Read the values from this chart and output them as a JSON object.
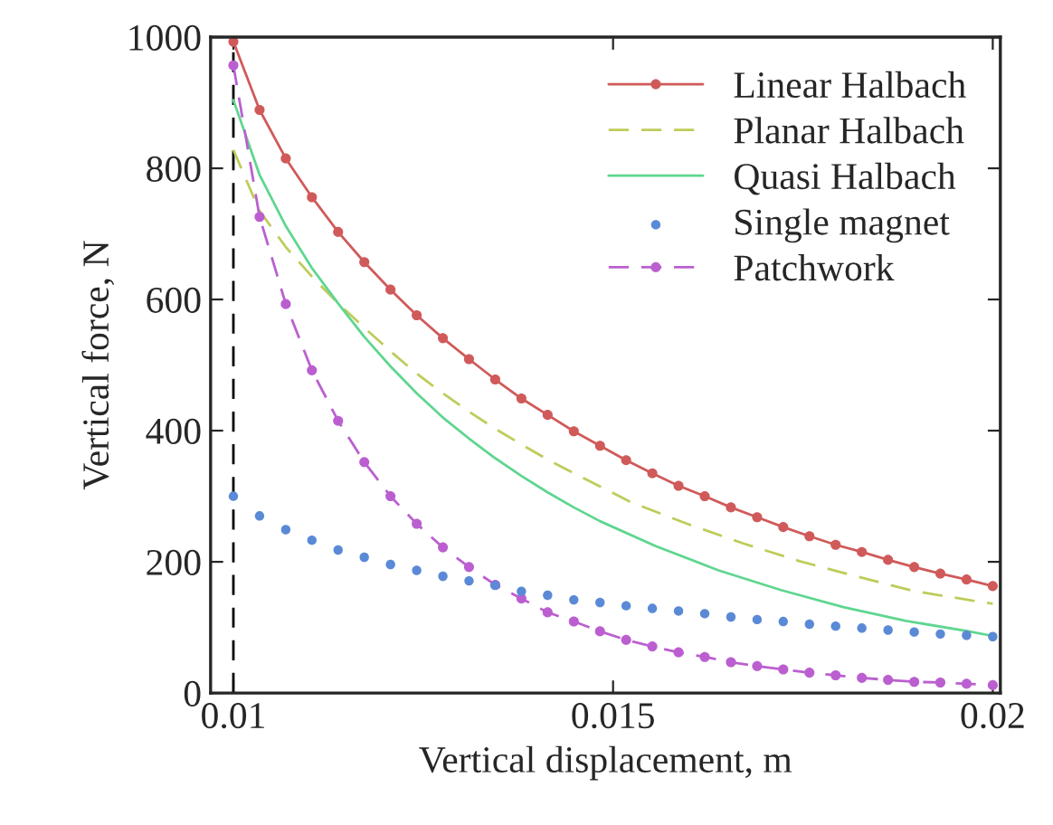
{
  "chart_data": {
    "type": "line",
    "xlabel": "Vertical displacement, m",
    "ylabel": "Vertical force, N",
    "x": [
      0.01,
      0.010345,
      0.01069,
      0.011034,
      0.011379,
      0.011724,
      0.012069,
      0.012414,
      0.012759,
      0.013103,
      0.013448,
      0.013793,
      0.014138,
      0.014483,
      0.014828,
      0.015172,
      0.015517,
      0.015862,
      0.016207,
      0.016552,
      0.016897,
      0.017241,
      0.017586,
      0.017931,
      0.018276,
      0.018621,
      0.018966,
      0.01931,
      0.019655,
      0.02
    ],
    "series": [
      {
        "name": "Linear Halbach",
        "color": "#d05a5a",
        "marker": "circle",
        "line_style": "solid",
        "values": [
          993,
          889,
          815,
          756,
          703,
          657,
          615,
          576,
          541,
          509,
          478,
          449,
          424,
          399,
          377,
          355,
          335,
          316,
          300,
          283,
          268,
          253,
          239,
          226,
          215,
          203,
          192,
          182,
          173,
          163
        ]
      },
      {
        "name": "Planar Halbach",
        "color": "#bfcc5a",
        "marker": "none",
        "line_style": "dashed",
        "x": [
          0.01,
          0.010345,
          0.01069,
          0.011034,
          0.011379,
          0.011724,
          0.012069,
          0.012414,
          0.012759,
          0.013103,
          0.013448,
          0.013793,
          0.014138,
          0.014483,
          0.014828,
          0.015235,
          0.015975,
          0.016716,
          0.017457,
          0.018198,
          0.01898,
          0.02
        ],
        "values": [
          828,
          735,
          680,
          635,
          594,
          557,
          521,
          487,
          457,
          429,
          403,
          379,
          356,
          335,
          315,
          291,
          258,
          228,
          201,
          178,
          155,
          136
        ]
      },
      {
        "name": "Quasi Halbach",
        "color": "#5fd68f",
        "marker": "none",
        "line_style": "solid",
        "x": [
          0.01,
          0.010345,
          0.01069,
          0.011034,
          0.011379,
          0.011724,
          0.012069,
          0.012414,
          0.012759,
          0.013103,
          0.013448,
          0.013793,
          0.014138,
          0.014483,
          0.014828,
          0.015563,
          0.016388,
          0.01721,
          0.018032,
          0.018857,
          0.019679,
          0.02
        ],
        "values": [
          904,
          790,
          712,
          648,
          594,
          543,
          498,
          457,
          420,
          388,
          358,
          331,
          306,
          283,
          262,
          224,
          187,
          157,
          131,
          110,
          94,
          87
        ]
      },
      {
        "name": "Single magnet",
        "type": "scatter",
        "color": "#5a8ad6",
        "marker": "circle",
        "values": [
          300,
          270,
          249,
          233,
          218,
          207,
          196,
          187,
          178,
          171,
          164,
          155,
          149,
          142,
          138,
          133,
          129,
          125,
          121,
          116,
          112,
          109,
          105,
          102,
          99,
          96,
          93,
          90,
          88,
          86
        ]
      },
      {
        "name": "Patchwork",
        "color": "#bb5fd0",
        "marker": "circle",
        "line_style": "dashed",
        "values": [
          957,
          726,
          593,
          492,
          415,
          352,
          300,
          258,
          222,
          192,
          165,
          144,
          123,
          109,
          94,
          81,
          71,
          62,
          55,
          47,
          41,
          36,
          31,
          27,
          23,
          20,
          17,
          16,
          14,
          12
        ]
      }
    ],
    "ref_lines": [
      {
        "axis": "x",
        "value": 0.01,
        "color": "#000000",
        "line_style": "dashed"
      }
    ],
    "xlim": [
      0.0097,
      0.0201
    ],
    "ylim": [
      0,
      1000
    ],
    "xticks": [
      0.01,
      0.015,
      0.02
    ],
    "yticks": [
      0,
      200,
      400,
      600,
      800,
      1000
    ],
    "legend": "top right"
  }
}
